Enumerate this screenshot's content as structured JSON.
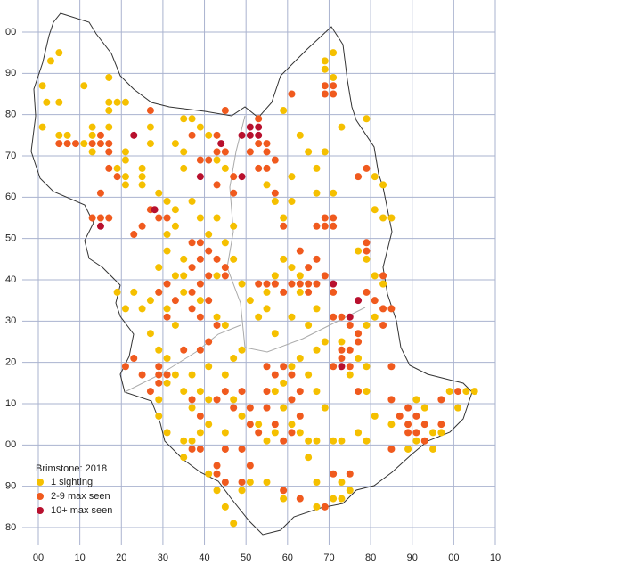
{
  "chart_data": {
    "type": "map",
    "legend_title": "Brimstone:  2018",
    "xlim": [
      0,
      110
    ],
    "ylim": [
      -20,
      100
    ],
    "xticks": [
      {
        "value": 0,
        "label": "00"
      },
      10,
      20,
      30,
      40,
      50,
      60,
      70,
      80,
      90,
      {
        "value": 100,
        "label": "00"
      },
      {
        "value": 110,
        "label": "10"
      }
    ],
    "yticks": [
      {
        "value": 100,
        "label": "00"
      },
      90,
      80,
      70,
      60,
      50,
      40,
      30,
      20,
      10,
      {
        "value": 0,
        "label": "00"
      },
      {
        "value": -10,
        "label": "90"
      },
      {
        "value": -20,
        "label": "80"
      }
    ],
    "grid": true,
    "series": [
      {
        "name": "1 sighting",
        "color": "#f5c000",
        "x": [
          5,
          3,
          1,
          11,
          2,
          5,
          17,
          17,
          19,
          21,
          17,
          1,
          5,
          7,
          13,
          13,
          17,
          11,
          13,
          21,
          21,
          19,
          21,
          21,
          25,
          25,
          25,
          27,
          27,
          29,
          31,
          33,
          33,
          31,
          31,
          29,
          35,
          35,
          33,
          35,
          37,
          39,
          41,
          43,
          45,
          33,
          35,
          35,
          37,
          39,
          41,
          43,
          47,
          45,
          47,
          43,
          49,
          51,
          55,
          57,
          59,
          61,
          63,
          57,
          55,
          53,
          57,
          61,
          65,
          67,
          63,
          59,
          57,
          61,
          55,
          61,
          63,
          59,
          65,
          67,
          67,
          71,
          69,
          71,
          71,
          69,
          69,
          73,
          79,
          81,
          81,
          83,
          85,
          83,
          77,
          79,
          81,
          83,
          81,
          79,
          77,
          79,
          75,
          73,
          69,
          67,
          63,
          61,
          59,
          57,
          59,
          61,
          63,
          65,
          67,
          57,
          55,
          53,
          49,
          47,
          45,
          41,
          39,
          37,
          35,
          35,
          31,
          29,
          29,
          31,
          33,
          37,
          39,
          41,
          37,
          35,
          31,
          29,
          33,
          31,
          29,
          27,
          25,
          23,
          21,
          19,
          27,
          35,
          39,
          43,
          45,
          49,
          47,
          45,
          41,
          55,
          51,
          49,
          59,
          67,
          71,
          73,
          75,
          73,
          77,
          79,
          71,
          91,
          95,
          97,
          93,
          91,
          101,
          99,
          103,
          105,
          95,
          89,
          67,
          65,
          47,
          45,
          43,
          41,
          79,
          81,
          85,
          73,
          69,
          67,
          65
        ],
        "y": [
          95,
          93,
          87,
          87,
          83,
          83,
          89,
          83,
          83,
          83,
          81,
          77,
          75,
          75,
          77,
          75,
          77,
          73,
          71,
          71,
          69,
          67,
          65,
          63,
          67,
          65,
          63,
          73,
          77,
          61,
          59,
          57,
          53,
          51,
          47,
          43,
          45,
          41,
          41,
          79,
          79,
          77,
          75,
          69,
          67,
          73,
          71,
          67,
          59,
          55,
          51,
          55,
          53,
          49,
          45,
          41,
          39,
          35,
          37,
          41,
          45,
          43,
          41,
          39,
          33,
          31,
          27,
          31,
          29,
          33,
          37,
          55,
          59,
          59,
          63,
          65,
          75,
          81,
          71,
          67,
          61,
          61,
          71,
          89,
          95,
          93,
          91,
          77,
          79,
          65,
          57,
          55,
          55,
          63,
          47,
          45,
          41,
          39,
          31,
          29,
          21,
          19,
          17,
          25,
          25,
          23,
          21,
          19,
          15,
          13,
          9,
          5,
          3,
          1,
          1,
          3,
          1,
          5,
          7,
          11,
          3,
          5,
          3,
          1,
          1,
          -3,
          3,
          7,
          11,
          15,
          17,
          17,
          13,
          11,
          9,
          13,
          21,
          23,
          29,
          33,
          37,
          35,
          33,
          37,
          33,
          37,
          27,
          37,
          35,
          31,
          29,
          23,
          21,
          17,
          19,
          -9,
          -9,
          -11,
          -13,
          -15,
          -13,
          -13,
          -11,
          -9,
          3,
          1,
          1,
          1,
          3,
          3,
          9,
          11,
          9,
          13,
          13,
          13,
          -1,
          -1,
          -9,
          -3,
          -19,
          -15,
          -11,
          -7,
          13,
          7,
          5,
          1,
          9,
          13,
          17
        ]
      },
      {
        "name": "2-9 max seen",
        "color": "#f05a1e",
        "x": [
          5,
          7,
          9,
          13,
          15,
          17,
          15,
          17,
          17,
          19,
          15,
          15,
          13,
          17,
          23,
          25,
          27,
          31,
          29,
          37,
          39,
          41,
          39,
          37,
          43,
          45,
          45,
          41,
          39,
          37,
          31,
          29,
          31,
          33,
          37,
          39,
          41,
          43,
          41,
          39,
          35,
          23,
          21,
          25,
          27,
          29,
          29,
          31,
          37,
          43,
          45,
          47,
          49,
          51,
          51,
          53,
          55,
          57,
          59,
          55,
          55,
          57,
          59,
          61,
          63,
          61,
          63,
          53,
          55,
          57,
          59,
          61,
          63,
          65,
          65,
          67,
          69,
          65,
          67,
          63,
          59,
          67,
          69,
          71,
          69,
          71,
          71,
          71,
          73,
          75,
          77,
          77,
          75,
          73,
          75,
          71,
          73,
          79,
          81,
          83,
          83,
          85,
          79,
          79,
          83,
          85,
          77,
          85,
          87,
          89,
          89,
          91,
          89,
          91,
          93,
          93,
          97,
          97,
          101,
          85,
          71,
          75,
          69,
          63,
          59,
          49,
          45,
          43,
          43,
          39,
          39,
          51,
          49,
          37,
          45,
          47,
          43,
          47,
          53,
          51,
          55,
          55,
          53,
          57,
          55,
          57,
          43,
          45,
          43,
          37,
          41,
          39,
          27,
          45,
          53,
          71,
          69,
          71,
          69,
          61,
          79,
          77,
          61,
          29
        ],
        "y": [
          73,
          73,
          73,
          73,
          73,
          73,
          75,
          71,
          67,
          65,
          61,
          55,
          55,
          55,
          51,
          53,
          57,
          55,
          55,
          49,
          49,
          47,
          45,
          43,
          45,
          43,
          41,
          41,
          39,
          37,
          39,
          37,
          31,
          35,
          33,
          31,
          35,
          29,
          25,
          23,
          23,
          21,
          19,
          17,
          13,
          17,
          15,
          17,
          11,
          11,
          13,
          9,
          13,
          9,
          5,
          3,
          19,
          17,
          19,
          13,
          9,
          5,
          1,
          3,
          7,
          11,
          13,
          39,
          39,
          39,
          37,
          39,
          39,
          37,
          39,
          39,
          41,
          43,
          45,
          47,
          53,
          53,
          53,
          55,
          55,
          53,
          37,
          31,
          31,
          29,
          27,
          25,
          23,
          21,
          19,
          19,
          23,
          37,
          35,
          33,
          29,
          33,
          49,
          47,
          41,
          19,
          13,
          11,
          7,
          9,
          5,
          7,
          3,
          3,
          5,
          1,
          5,
          11,
          13,
          -1,
          -7,
          -7,
          -15,
          -13,
          -11,
          -9,
          -9,
          -7,
          -5,
          -1,
          7,
          -5,
          -1,
          -1,
          -1,
          61,
          63,
          65,
          67,
          71,
          71,
          73,
          73,
          69,
          67,
          61,
          71,
          71,
          75,
          75,
          69,
          69,
          81,
          81,
          79,
          87,
          87,
          85,
          85,
          85,
          67,
          65,
          17,
          19
        ]
      },
      {
        "name": "10+ max seen",
        "color": "#b8102e",
        "x": [
          23,
          15,
          39,
          44,
          49,
          49,
          51,
          53,
          53,
          51,
          28,
          71,
          75,
          77,
          73
        ],
        "y": [
          75,
          53,
          65,
          73,
          65,
          75,
          75,
          75,
          77,
          77,
          57,
          39,
          31,
          35,
          19
        ]
      }
    ]
  }
}
